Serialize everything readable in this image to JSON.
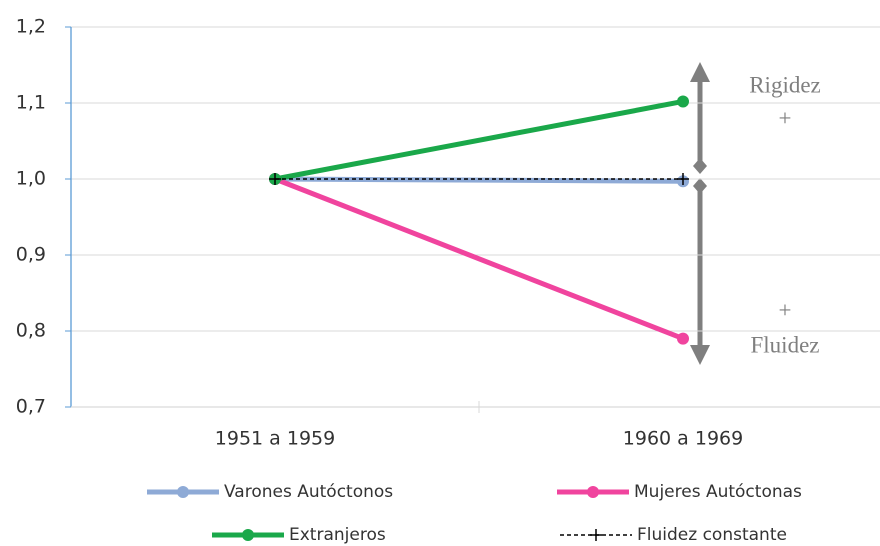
{
  "chart_data": {
    "type": "line",
    "categories": [
      "1951 a 1959",
      "1960 a 1969"
    ],
    "series": [
      {
        "name": "Varones Autóctonos",
        "color": "#8eaad6",
        "values": [
          1.0,
          0.997
        ],
        "marker": "circle",
        "dash": false
      },
      {
        "name": "Mujeres Autóctonas",
        "color": "#f0449e",
        "values": [
          1.0,
          0.79
        ],
        "marker": "circle",
        "dash": false
      },
      {
        "name": "Extranjeros",
        "color": "#1aa84a",
        "values": [
          1.0,
          1.102
        ],
        "marker": "circle",
        "dash": false
      },
      {
        "name": "Fluidez constante",
        "color": "#000000",
        "values": [
          1.0,
          1.0
        ],
        "marker": "plus",
        "dash": true
      }
    ],
    "ylim": [
      0.7,
      1.2
    ],
    "yticks": [
      {
        "value": 0.7,
        "label": "0,7"
      },
      {
        "value": 0.8,
        "label": "0,8"
      },
      {
        "value": 0.9,
        "label": "0,9"
      },
      {
        "value": 1.0,
        "label": "1,0"
      },
      {
        "value": 1.1,
        "label": "1,1"
      },
      {
        "value": 1.2,
        "label": "1,2"
      }
    ],
    "grid": true,
    "annotations": [
      "Rigidez",
      "+",
      "+",
      "Fluidez"
    ]
  }
}
